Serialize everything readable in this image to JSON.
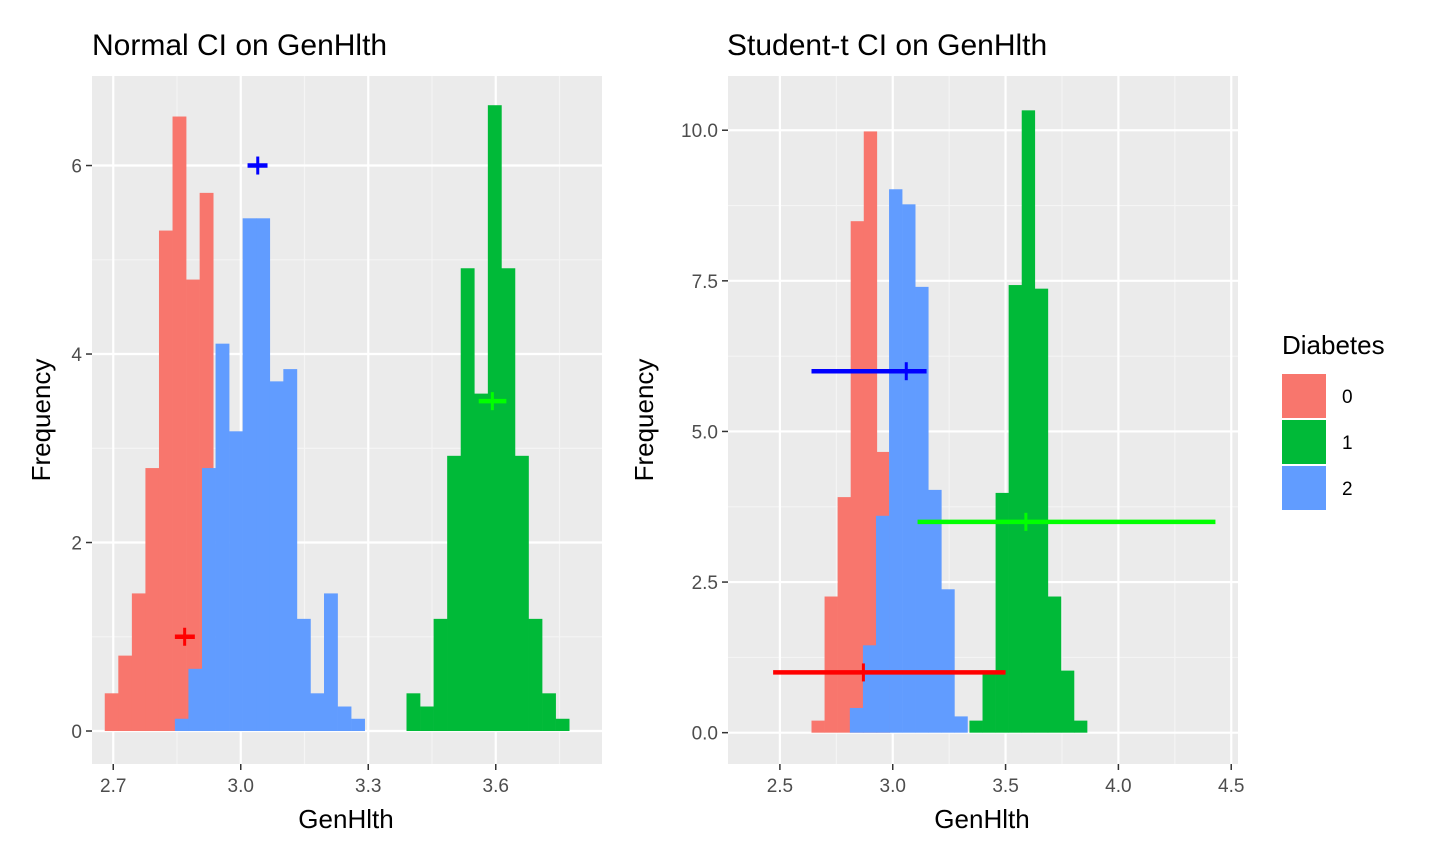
{
  "colors": {
    "panel_bg": "#ebebeb",
    "grid_major": "#ffffff",
    "grid_minor": "#f5f5f5",
    "tick_text": "#4d4d4d",
    "tick_mark": "#333333",
    "fill_0": "#f8766d",
    "fill_1": "#00ba38",
    "fill_2": "#619cff",
    "ci_0": "#ff0000",
    "ci_1": "#00ff00",
    "ci_2": "#0000ff"
  },
  "legend": {
    "title": "Diabetes",
    "items": [
      {
        "label": "0",
        "color": "#f8766d"
      },
      {
        "label": "1",
        "color": "#00ba38"
      },
      {
        "label": "2",
        "color": "#619cff"
      }
    ]
  },
  "chart_data": [
    {
      "type": "bar",
      "title": "Normal CI on GenHlth",
      "xlabel": "GenHlth",
      "ylabel": "Frequency",
      "xlim": [
        2.65,
        3.85
      ],
      "ylim": [
        -0.35,
        6.95
      ],
      "x_ticks": [
        {
          "value": 2.7,
          "label": "2.7"
        },
        {
          "value": 3.0,
          "label": "3.0"
        },
        {
          "value": 3.3,
          "label": "3.3"
        },
        {
          "value": 3.6,
          "label": "3.6"
        }
      ],
      "y_ticks": [
        {
          "value": 0,
          "label": "0"
        },
        {
          "value": 2,
          "label": "2"
        },
        {
          "value": 4,
          "label": "4"
        },
        {
          "value": 6,
          "label": "6"
        }
      ],
      "binwidth": 0.0319,
      "series": [
        {
          "group": "0",
          "bin_start": 2.68,
          "values": [
            0.4,
            0.8,
            1.46,
            2.79,
            5.31,
            6.52,
            4.79,
            5.71
          ]
        },
        {
          "group": "2",
          "bin_start": 2.845,
          "values": [
            0.13,
            0.66,
            2.79,
            4.11,
            3.18,
            5.44,
            5.44,
            3.71,
            3.84,
            1.19,
            0.4,
            1.46,
            0.26,
            0.13
          ]
        },
        {
          "group": "1",
          "bin_start": 3.39,
          "values": [
            0.4,
            0.26,
            1.19,
            2.92,
            4.91,
            3.58,
            6.64,
            4.91,
            2.92,
            1.19,
            0.4,
            0.13
          ]
        }
      ],
      "ci_bars": [
        {
          "group": "0",
          "mean": 2.868,
          "lower": 2.845,
          "upper": 2.892,
          "y": 1.0
        },
        {
          "group": "2",
          "mean": 3.04,
          "lower": 3.016,
          "upper": 3.063,
          "y": 6.0
        },
        {
          "group": "1",
          "mean": 3.592,
          "lower": 3.56,
          "upper": 3.625,
          "y": 3.5
        }
      ]
    },
    {
      "type": "bar",
      "title": "Student-t CI on GenHlth",
      "xlabel": "GenHlth",
      "ylabel": "Frequency",
      "xlim": [
        2.27,
        4.53
      ],
      "ylim": [
        -0.52,
        10.9
      ],
      "x_ticks": [
        {
          "value": 2.5,
          "label": "2.5"
        },
        {
          "value": 3.0,
          "label": "3.0"
        },
        {
          "value": 3.5,
          "label": "3.5"
        },
        {
          "value": 4.0,
          "label": "4.0"
        },
        {
          "value": 4.5,
          "label": "4.5"
        }
      ],
      "y_ticks": [
        {
          "value": 0,
          "label": "0.0"
        },
        {
          "value": 2.5,
          "label": "2.5"
        },
        {
          "value": 5,
          "label": "5.0"
        },
        {
          "value": 7.5,
          "label": "7.5"
        },
        {
          "value": 10,
          "label": "10.0"
        }
      ],
      "binwidth": 0.0579,
      "series": [
        {
          "group": "0",
          "bin_start": 2.64,
          "values": [
            0.2,
            2.26,
            3.91,
            8.49,
            9.98,
            4.66
          ]
        },
        {
          "group": "2",
          "bin_start": 2.81,
          "values": [
            0.41,
            1.45,
            3.6,
            9.02,
            8.77,
            7.4,
            4.03,
            2.38,
            0.27
          ]
        },
        {
          "group": "1",
          "bin_start": 3.34,
          "values": [
            0.2,
            1.03,
            3.98,
            7.43,
            10.33,
            7.37,
            2.26,
            1.03,
            0.2
          ]
        }
      ],
      "ci_bars": [
        {
          "group": "0",
          "mean": 2.87,
          "lower": 2.47,
          "upper": 3.5,
          "y": 1.0
        },
        {
          "group": "2",
          "mean": 3.06,
          "lower": 2.64,
          "upper": 3.15,
          "y": 6.0
        },
        {
          "group": "1",
          "mean": 3.59,
          "lower": 3.11,
          "upper": 4.43,
          "y": 3.5
        }
      ]
    }
  ]
}
